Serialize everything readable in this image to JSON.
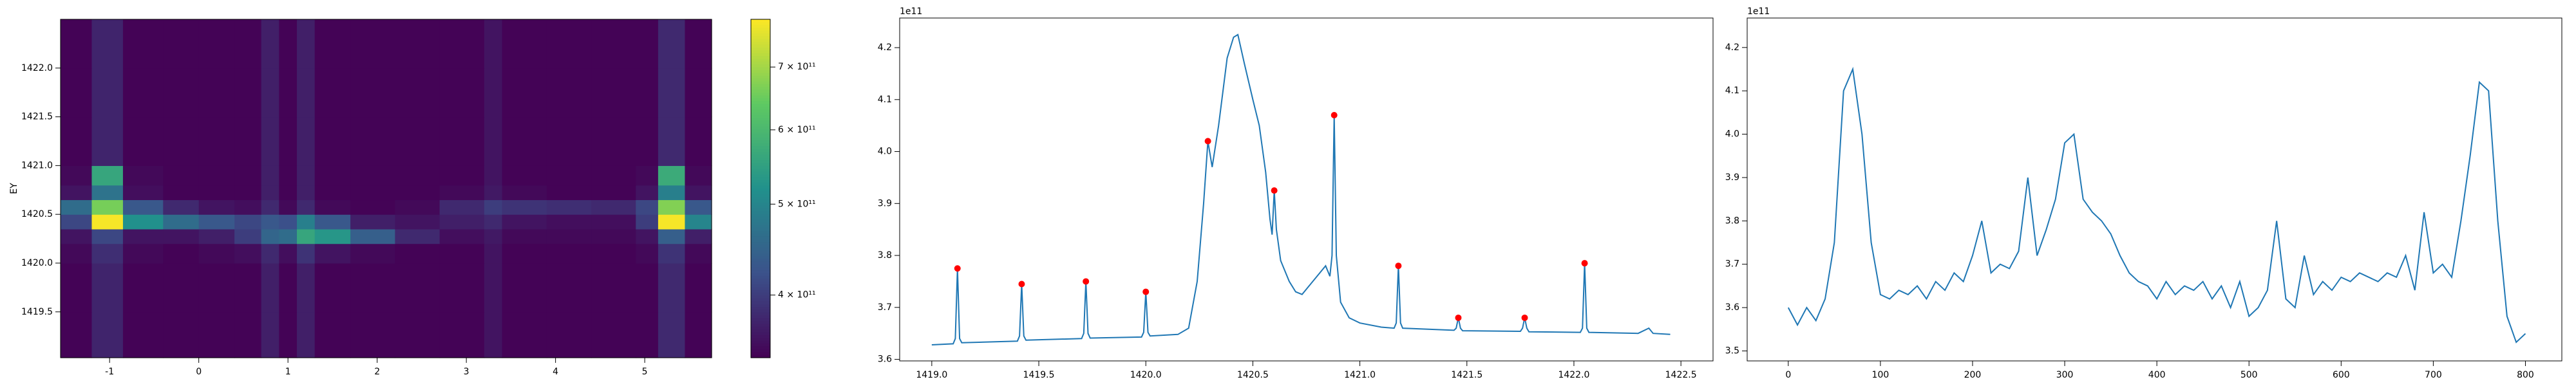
{
  "chart_data": [
    {
      "type": "heatmap",
      "ylabel": "EY",
      "x_edges": [
        -1.55,
        -1.2,
        -0.85,
        -0.4,
        0,
        0.4,
        0.7,
        0.9,
        1.1,
        1.3,
        1.7,
        2.2,
        2.7,
        3.2,
        3.4,
        3.9,
        4.4,
        4.9,
        5.15,
        5.45,
        5.75
      ],
      "y_edges": [
        1419.03,
        1419.5,
        1420.0,
        1420.2,
        1420.35,
        1420.5,
        1420.65,
        1420.8,
        1421.0,
        1421.5,
        1422.0,
        1422.5
      ],
      "z": [
        [
          345000000000.0,
          375000000000.0,
          345000000000.0,
          345000000000.0,
          345000000000.0,
          345000000000.0,
          370000000000.0,
          345000000000.0,
          370000000000.0,
          345000000000.0,
          345000000000.0,
          345000000000.0,
          345000000000.0,
          360000000000.0,
          345000000000.0,
          345000000000.0,
          345000000000.0,
          345000000000.0,
          380000000000.0,
          345000000000.0
        ],
        [
          345000000000.0,
          375000000000.0,
          345000000000.0,
          345000000000.0,
          345000000000.0,
          345000000000.0,
          370000000000.0,
          345000000000.0,
          370000000000.0,
          345000000000.0,
          345000000000.0,
          345000000000.0,
          345000000000.0,
          360000000000.0,
          345000000000.0,
          345000000000.0,
          345000000000.0,
          345000000000.0,
          380000000000.0,
          345000000000.0
        ],
        [
          350000000000.0,
          385000000000.0,
          350000000000.0,
          345000000000.0,
          350000000000.0,
          355000000000.0,
          380000000000.0,
          355000000000.0,
          390000000000.0,
          360000000000.0,
          350000000000.0,
          345000000000.0,
          345000000000.0,
          360000000000.0,
          345000000000.0,
          345000000000.0,
          345000000000.0,
          350000000000.0,
          390000000000.0,
          350000000000.0
        ],
        [
          360000000000.0,
          410000000000.0,
          360000000000.0,
          360000000000.0,
          370000000000.0,
          400000000000.0,
          450000000000.0,
          460000000000.0,
          560000000000.0,
          530000000000.0,
          440000000000.0,
          380000000000.0,
          355000000000.0,
          365000000000.0,
          350000000000.0,
          350000000000.0,
          350000000000.0,
          360000000000.0,
          440000000000.0,
          370000000000.0
        ],
        [
          410000000000.0,
          780000000000.0,
          520000000000.0,
          460000000000.0,
          430000000000.0,
          410000000000.0,
          430000000000.0,
          420000000000.0,
          490000000000.0,
          430000000000.0,
          370000000000.0,
          360000000000.0,
          370000000000.0,
          380000000000.0,
          360000000000.0,
          355000000000.0,
          355000000000.0,
          400000000000.0,
          780000000000.0,
          500000000000.0
        ],
        [
          460000000000.0,
          660000000000.0,
          430000000000.0,
          380000000000.0,
          360000000000.0,
          355000000000.0,
          380000000000.0,
          350000000000.0,
          380000000000.0,
          350000000000.0,
          345000000000.0,
          350000000000.0,
          380000000000.0,
          400000000000.0,
          390000000000.0,
          385000000000.0,
          380000000000.0,
          410000000000.0,
          670000000000.0,
          430000000000.0
        ],
        [
          360000000000.0,
          470000000000.0,
          355000000000.0,
          345000000000.0,
          345000000000.0,
          345000000000.0,
          370000000000.0,
          345000000000.0,
          370000000000.0,
          345000000000.0,
          345000000000.0,
          345000000000.0,
          350000000000.0,
          365000000000.0,
          350000000000.0,
          345000000000.0,
          345000000000.0,
          360000000000.0,
          490000000000.0,
          360000000000.0
        ],
        [
          350000000000.0,
          560000000000.0,
          350000000000.0,
          345000000000.0,
          345000000000.0,
          345000000000.0,
          370000000000.0,
          345000000000.0,
          370000000000.0,
          345000000000.0,
          345000000000.0,
          345000000000.0,
          345000000000.0,
          360000000000.0,
          345000000000.0,
          345000000000.0,
          345000000000.0,
          350000000000.0,
          570000000000.0,
          350000000000.0
        ],
        [
          345000000000.0,
          375000000000.0,
          345000000000.0,
          345000000000.0,
          345000000000.0,
          345000000000.0,
          370000000000.0,
          345000000000.0,
          370000000000.0,
          345000000000.0,
          345000000000.0,
          345000000000.0,
          345000000000.0,
          360000000000.0,
          345000000000.0,
          345000000000.0,
          345000000000.0,
          345000000000.0,
          380000000000.0,
          345000000000.0
        ],
        [
          345000000000.0,
          375000000000.0,
          345000000000.0,
          345000000000.0,
          345000000000.0,
          345000000000.0,
          370000000000.0,
          345000000000.0,
          370000000000.0,
          345000000000.0,
          345000000000.0,
          345000000000.0,
          345000000000.0,
          360000000000.0,
          345000000000.0,
          345000000000.0,
          345000000000.0,
          345000000000.0,
          380000000000.0,
          345000000000.0
        ],
        [
          345000000000.0,
          375000000000.0,
          345000000000.0,
          345000000000.0,
          345000000000.0,
          345000000000.0,
          370000000000.0,
          345000000000.0,
          370000000000.0,
          345000000000.0,
          345000000000.0,
          345000000000.0,
          345000000000.0,
          360000000000.0,
          345000000000.0,
          345000000000.0,
          345000000000.0,
          345000000000.0,
          380000000000.0,
          345000000000.0
        ]
      ],
      "xlim": [
        -1.55,
        5.75
      ],
      "ylim": [
        1419.03,
        1422.5
      ],
      "xticks": [
        -1,
        0,
        1,
        2,
        3,
        4,
        5
      ],
      "yticks": [
        1419.5,
        {
          "value": 1420.0,
          "label": "1420.0"
        },
        1420.5,
        {
          "value": 1421.0,
          "label": "1421.0"
        },
        1421.5,
        {
          "value": 1422.0,
          "label": "1422.0"
        }
      ],
      "colormap": "viridis",
      "color_scale": "log",
      "clim": [
        343000000000.0,
        787000000000.0
      ],
      "cticks": [
        {
          "value": 400000000000.0,
          "label": "4 × 10¹¹"
        },
        {
          "value": 500000000000.0,
          "label": "5 × 10¹¹"
        },
        {
          "value": 600000000000.0,
          "label": "6 × 10¹¹"
        },
        {
          "value": 700000000000.0,
          "label": "7 × 10¹¹"
        }
      ]
    },
    {
      "type": "line",
      "offset_label": "1e11",
      "series": [
        {
          "style": "line",
          "color": "#1f77b4",
          "x": [
            1419.0,
            1419.1,
            1419.11,
            1419.12,
            1419.13,
            1419.14,
            1419.4,
            1419.41,
            1419.42,
            1419.43,
            1419.44,
            1419.7,
            1419.71,
            1419.72,
            1419.73,
            1419.74,
            1419.98,
            1419.99,
            1420.0,
            1420.01,
            1420.02,
            1420.15,
            1420.2,
            1420.24,
            1420.27,
            1420.29,
            1420.31,
            1420.34,
            1420.38,
            1420.41,
            1420.43,
            1420.46,
            1420.5,
            1420.53,
            1420.56,
            1420.58,
            1420.59,
            1420.6,
            1420.61,
            1420.63,
            1420.67,
            1420.7,
            1420.73,
            1420.76,
            1420.8,
            1420.84,
            1420.86,
            1420.87,
            1420.88,
            1420.89,
            1420.91,
            1420.95,
            1421.0,
            1421.1,
            1421.16,
            1421.17,
            1421.18,
            1421.19,
            1421.2,
            1421.44,
            1421.45,
            1421.46,
            1421.47,
            1421.48,
            1421.75,
            1421.76,
            1421.77,
            1421.78,
            1421.79,
            1422.03,
            1422.04,
            1422.05,
            1422.06,
            1422.07,
            1422.3,
            1422.35,
            1422.37,
            1422.45
          ],
          "values": [
            3.628,
            3.63,
            3.64,
            3.775,
            3.64,
            3.632,
            3.635,
            3.645,
            3.745,
            3.645,
            3.637,
            3.64,
            3.65,
            3.75,
            3.65,
            3.641,
            3.643,
            3.652,
            3.73,
            3.652,
            3.645,
            3.648,
            3.66,
            3.75,
            3.9,
            4.02,
            3.97,
            4.05,
            4.18,
            4.22,
            4.225,
            4.17,
            4.1,
            4.05,
            3.96,
            3.87,
            3.84,
            3.925,
            3.85,
            3.79,
            3.75,
            3.73,
            3.725,
            3.74,
            3.76,
            3.78,
            3.76,
            3.8,
            4.07,
            3.8,
            3.71,
            3.68,
            3.67,
            3.662,
            3.66,
            3.67,
            3.78,
            3.67,
            3.66,
            3.656,
            3.66,
            3.68,
            3.66,
            3.655,
            3.654,
            3.66,
            3.68,
            3.66,
            3.653,
            3.652,
            3.66,
            3.785,
            3.66,
            3.652,
            3.65,
            3.66,
            3.65,
            3.648
          ]
        },
        {
          "style": "marker",
          "color": "#ff0000",
          "x": [
            1419.12,
            1419.42,
            1419.72,
            1420.0,
            1420.29,
            1420.6,
            1420.88,
            1421.18,
            1421.46,
            1421.77,
            1422.05
          ],
          "values": [
            3.775,
            3.745,
            3.75,
            3.73,
            4.02,
            3.925,
            4.07,
            3.78,
            3.68,
            3.68,
            3.785
          ]
        }
      ],
      "xlim": [
        1418.85,
        1422.65
      ],
      "ylim": [
        3.597,
        4.257
      ],
      "xticks": [
        {
          "value": 1419.0,
          "label": "1419.0"
        },
        1419.5,
        {
          "value": 1420.0,
          "label": "1420.0"
        },
        1420.5,
        {
          "value": 1421.0,
          "label": "1421.0"
        },
        1421.5,
        {
          "value": 1422.0,
          "label": "1422.0"
        },
        1422.5
      ],
      "yticks": [
        3.6,
        3.7,
        3.8,
        3.9,
        {
          "value": 4.0,
          "label": "4.0"
        },
        4.1,
        4.2
      ]
    },
    {
      "type": "line",
      "offset_label": "1e11",
      "series": [
        {
          "style": "line",
          "color": "#1f77b4",
          "x": [
            0,
            10,
            20,
            30,
            40,
            50,
            60,
            70,
            80,
            90,
            100,
            110,
            120,
            130,
            140,
            150,
            160,
            170,
            180,
            190,
            200,
            210,
            220,
            230,
            240,
            250,
            260,
            270,
            280,
            290,
            300,
            310,
            320,
            330,
            340,
            350,
            360,
            370,
            380,
            390,
            400,
            410,
            420,
            430,
            440,
            450,
            460,
            470,
            480,
            490,
            500,
            510,
            520,
            530,
            540,
            550,
            560,
            570,
            580,
            590,
            600,
            610,
            620,
            630,
            640,
            650,
            660,
            670,
            680,
            690,
            700,
            710,
            720,
            730,
            740,
            750,
            760,
            770,
            780,
            790,
            800
          ],
          "values": [
            3.6,
            3.56,
            3.6,
            3.57,
            3.62,
            3.75,
            4.1,
            4.15,
            4.0,
            3.75,
            3.63,
            3.62,
            3.64,
            3.63,
            3.65,
            3.62,
            3.66,
            3.64,
            3.68,
            3.66,
            3.72,
            3.8,
            3.68,
            3.7,
            3.69,
            3.73,
            3.9,
            3.72,
            3.78,
            3.85,
            3.98,
            4.0,
            3.85,
            3.82,
            3.8,
            3.77,
            3.72,
            3.68,
            3.66,
            3.65,
            3.62,
            3.66,
            3.63,
            3.65,
            3.64,
            3.66,
            3.62,
            3.65,
            3.6,
            3.66,
            3.58,
            3.6,
            3.64,
            3.8,
            3.62,
            3.6,
            3.72,
            3.63,
            3.66,
            3.64,
            3.67,
            3.66,
            3.68,
            3.67,
            3.66,
            3.68,
            3.67,
            3.72,
            3.64,
            3.82,
            3.68,
            3.7,
            3.67,
            3.8,
            3.95,
            4.12,
            4.1,
            3.8,
            3.58,
            3.52,
            3.54
          ]
        }
      ],
      "xlim": [
        -44.6,
        839.5
      ],
      "ylim": [
        3.477,
        4.268
      ],
      "xticks": [
        0,
        100,
        200,
        300,
        400,
        500,
        600,
        700,
        800
      ],
      "yticks": [
        3.5,
        3.6,
        3.7,
        3.8,
        3.9,
        {
          "value": 4.0,
          "label": "4.0"
        },
        4.1,
        4.2
      ]
    }
  ]
}
